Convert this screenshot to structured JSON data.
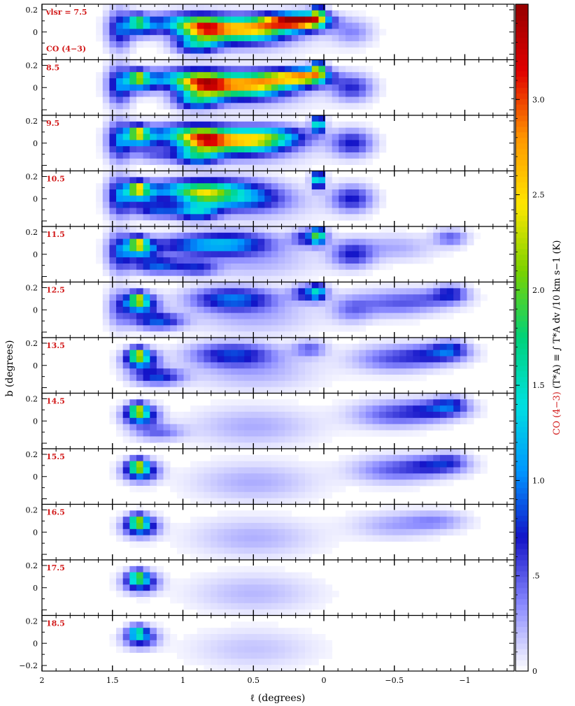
{
  "chart_data": {
    "type": "heatmap",
    "xlabel": "ℓ (degrees)",
    "ylabel": "b (degrees)",
    "xlim": [
      2.0,
      -1.35
    ],
    "ylim": [
      -0.25,
      0.25
    ],
    "x_ticks": [
      "2",
      "1.5",
      "1",
      "0.5",
      "0",
      "−0.5",
      "−1"
    ],
    "y_ticks": [
      "0.2",
      "0",
      "−0.2"
    ],
    "tracer_label": "CO (4−3)",
    "colorbar": {
      "label_prefix": "CO (4−3)",
      "label": "(T*A) ≡ ∫ T*A dv /10 km s−1 (K)",
      "range": [
        0,
        3.5
      ],
      "ticks": [
        "0",
        ".5",
        "1.0",
        "1.5",
        "2.0",
        "2.5",
        "3.0"
      ],
      "colors": [
        "#ffffff",
        "#8a8aff",
        "#1414c8",
        "#0096ff",
        "#00e0e0",
        "#00d27a",
        "#7ad200",
        "#ffe600",
        "#ff9600",
        "#e00000",
        "#960000"
      ]
    },
    "panels": [
      {
        "label": "vlsr = 7.5",
        "v": 7.5
      },
      {
        "label": "8.5",
        "v": 8.5
      },
      {
        "label": "9.5",
        "v": 9.5
      },
      {
        "label": "10.5",
        "v": 10.5
      },
      {
        "label": "11.5",
        "v": 11.5
      },
      {
        "label": "12.5",
        "v": 12.5
      },
      {
        "label": "13.5",
        "v": 13.5
      },
      {
        "label": "14.5",
        "v": 14.5
      },
      {
        "label": "15.5",
        "v": 15.5
      },
      {
        "label": "16.5",
        "v": 16.5
      },
      {
        "label": "17.5",
        "v": 17.5
      },
      {
        "label": "18.5",
        "v": 18.5
      }
    ],
    "emission_components": [
      {
        "l": 1.45,
        "b": 0.02,
        "sl": 0.06,
        "sb": 0.12,
        "v0": 7.0,
        "v1": 12.0,
        "peak": 0.9
      },
      {
        "l": 1.3,
        "b": 0.05,
        "sl": 0.08,
        "sb": 0.06,
        "v0": 7.0,
        "v1": 19.0,
        "peak": 1.3
      },
      {
        "l": 1.32,
        "b": 0.1,
        "sl": 0.04,
        "sb": 0.04,
        "v0": 7.0,
        "v1": 19.0,
        "peak": 1.6
      },
      {
        "l": 1.18,
        "b": -0.1,
        "sl": 0.12,
        "sb": 0.05,
        "v0": 10.0,
        "v1": 14.0,
        "peak": 0.9
      },
      {
        "l": 0.95,
        "b": 0.08,
        "sl": 0.2,
        "sb": 0.06,
        "v0": 7.0,
        "v1": 11.0,
        "peak": 1.4
      },
      {
        "l": 0.85,
        "b": 0.02,
        "sl": 0.12,
        "sb": 0.07,
        "v0": 7.0,
        "v1": 10.0,
        "peak": 1.8
      },
      {
        "l": 0.6,
        "b": 0.0,
        "sl": 0.2,
        "sb": 0.07,
        "v0": 7.0,
        "v1": 10.0,
        "peak": 1.7
      },
      {
        "l": 0.4,
        "b": 0.06,
        "sl": 0.18,
        "sb": 0.06,
        "v0": 7.0,
        "v1": 9.5,
        "peak": 1.6
      },
      {
        "l": 0.25,
        "b": 0.1,
        "sl": 0.12,
        "sb": 0.04,
        "v0": 7.0,
        "v1": 8.0,
        "peak": 2.2
      },
      {
        "l": 0.1,
        "b": 0.1,
        "sl": 0.1,
        "sb": 0.05,
        "v0": 7.0,
        "v1": 8.5,
        "peak": 2.0
      },
      {
        "l": 0.04,
        "b": 0.17,
        "sl": 0.03,
        "sb": 0.05,
        "v0": 7.0,
        "v1": 12.0,
        "peak": 1.8
      },
      {
        "l": 0.9,
        "b": -0.12,
        "sl": 0.1,
        "sb": 0.05,
        "v0": 7.0,
        "v1": 11.0,
        "peak": 1.2
      },
      {
        "l": 0.65,
        "b": 0.1,
        "sl": 0.2,
        "sb": 0.07,
        "v0": 11.0,
        "v1": 13.5,
        "peak": 0.9
      },
      {
        "l": 0.1,
        "b": 0.15,
        "sl": 0.08,
        "sb": 0.05,
        "v0": 11.5,
        "v1": 13.0,
        "peak": 0.9
      },
      {
        "l": -0.2,
        "b": 0.0,
        "sl": 0.1,
        "sb": 0.08,
        "v0": 8.0,
        "v1": 12.0,
        "peak": 0.7
      },
      {
        "l": -0.5,
        "b": 0.06,
        "sl": 0.2,
        "sb": 0.08,
        "v0": 12.0,
        "v1": 16.0,
        "peak": 0.5
      },
      {
        "l": -0.8,
        "b": 0.1,
        "sl": 0.15,
        "sb": 0.06,
        "v0": 13.0,
        "v1": 16.0,
        "peak": 0.6
      },
      {
        "l": -0.9,
        "b": 0.15,
        "sl": 0.08,
        "sb": 0.05,
        "v0": 11.5,
        "v1": 15.0,
        "peak": 0.6
      },
      {
        "l": 0.5,
        "b": -0.05,
        "sl": 0.3,
        "sb": 0.12,
        "v0": 7.0,
        "v1": 19.0,
        "peak": 0.25
      }
    ]
  }
}
